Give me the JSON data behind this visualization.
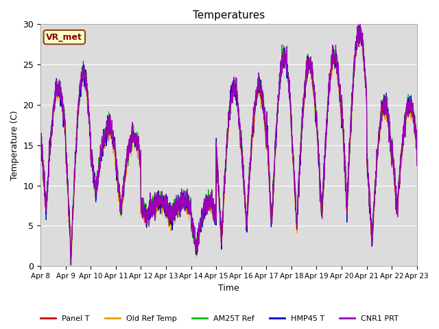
{
  "title": "Temperatures",
  "xlabel": "Time",
  "ylabel": "Temperature (C)",
  "ylim": [
    0,
    30
  ],
  "annotation": "VR_met",
  "bg_color": "#dcdcdc",
  "fig_bg": "#ffffff",
  "legend": [
    "Panel T",
    "Old Ref Temp",
    "AM25T Ref",
    "HMP45 T",
    "CNR1 PRT"
  ],
  "legend_colors": [
    "#cc0000",
    "#e8a000",
    "#00bb00",
    "#0000cc",
    "#9900bb"
  ],
  "xtick_labels": [
    "Apr 8",
    "Apr 9",
    "Apr 10",
    "Apr 11",
    "Apr 12",
    "Apr 13",
    "Apr 14",
    "Apr 15",
    "Apr 16",
    "Apr 17",
    "Apr 18",
    "Apr 19",
    "Apr 20",
    "Apr 21",
    "Apr 22",
    "Apr 23"
  ],
  "ytick_labels": [
    0,
    5,
    10,
    15,
    20,
    25,
    30
  ],
  "n_points": 2160,
  "grid_color": "#ffffff",
  "linewidth": 0.8,
  "daily_peaks": [
    22,
    24,
    17,
    16,
    8,
    8,
    8,
    22,
    22,
    26,
    25,
    26,
    29,
    20,
    20,
    18
  ],
  "daily_mins": [
    7,
    1,
    9,
    7,
    6,
    6,
    2,
    3,
    5,
    5,
    5,
    6,
    7,
    3,
    7,
    7
  ]
}
